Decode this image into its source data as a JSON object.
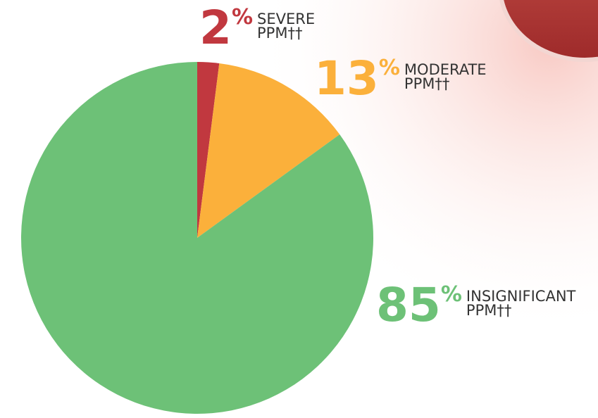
{
  "chart_data": {
    "type": "pie",
    "categories": [
      "SEVERE PPM††",
      "MODERATE PPM††",
      "INSIGNIFICANT PPM††"
    ],
    "values": [
      2,
      13,
      85
    ],
    "value_labels": [
      "2%",
      "13%",
      "85%"
    ],
    "colors": [
      "#c1383f",
      "#fbb03b",
      "#6dc177"
    ]
  }
}
